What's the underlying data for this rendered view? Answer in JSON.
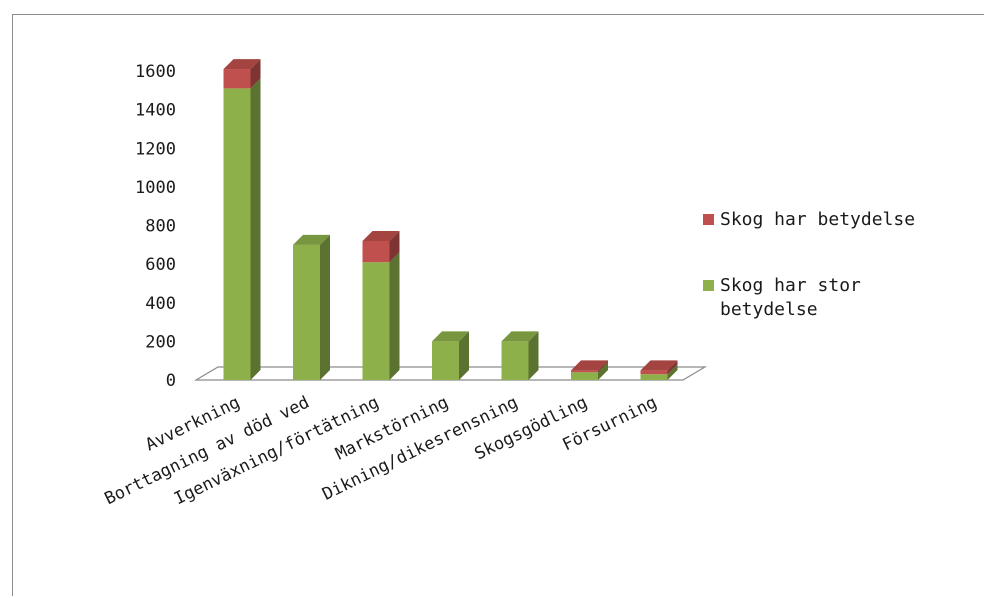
{
  "chart_data": {
    "type": "bar",
    "stacked": true,
    "three_d": true,
    "categories": [
      "Avverkning",
      "Borttagning av död ved",
      "Igenväxning/förtätning",
      "Markstörning",
      "Dikning/dikesrensning",
      "Skogsgödling",
      "Försurning"
    ],
    "series": [
      {
        "name": "Skog har stor betydelse",
        "color": "#8db04a",
        "values": [
          1510,
          700,
          610,
          200,
          200,
          40,
          30
        ]
      },
      {
        "name": "Skog har betydelse",
        "color": "#c0504d",
        "values": [
          100,
          0,
          110,
          0,
          0,
          10,
          20
        ]
      }
    ],
    "y_ticks": [
      "0",
      "200",
      "400",
      "600",
      "800",
      "1000",
      "1200",
      "1400",
      "1600"
    ],
    "ylim": [
      0,
      1600
    ],
    "legend": {
      "position": "right",
      "entries": [
        {
          "lines": [
            "Skog har betydelse"
          ],
          "color": "#c0504d"
        },
        {
          "lines": [
            "Skog har stor",
            "betydelse"
          ],
          "color": "#8db04a"
        }
      ]
    },
    "grid": false
  }
}
